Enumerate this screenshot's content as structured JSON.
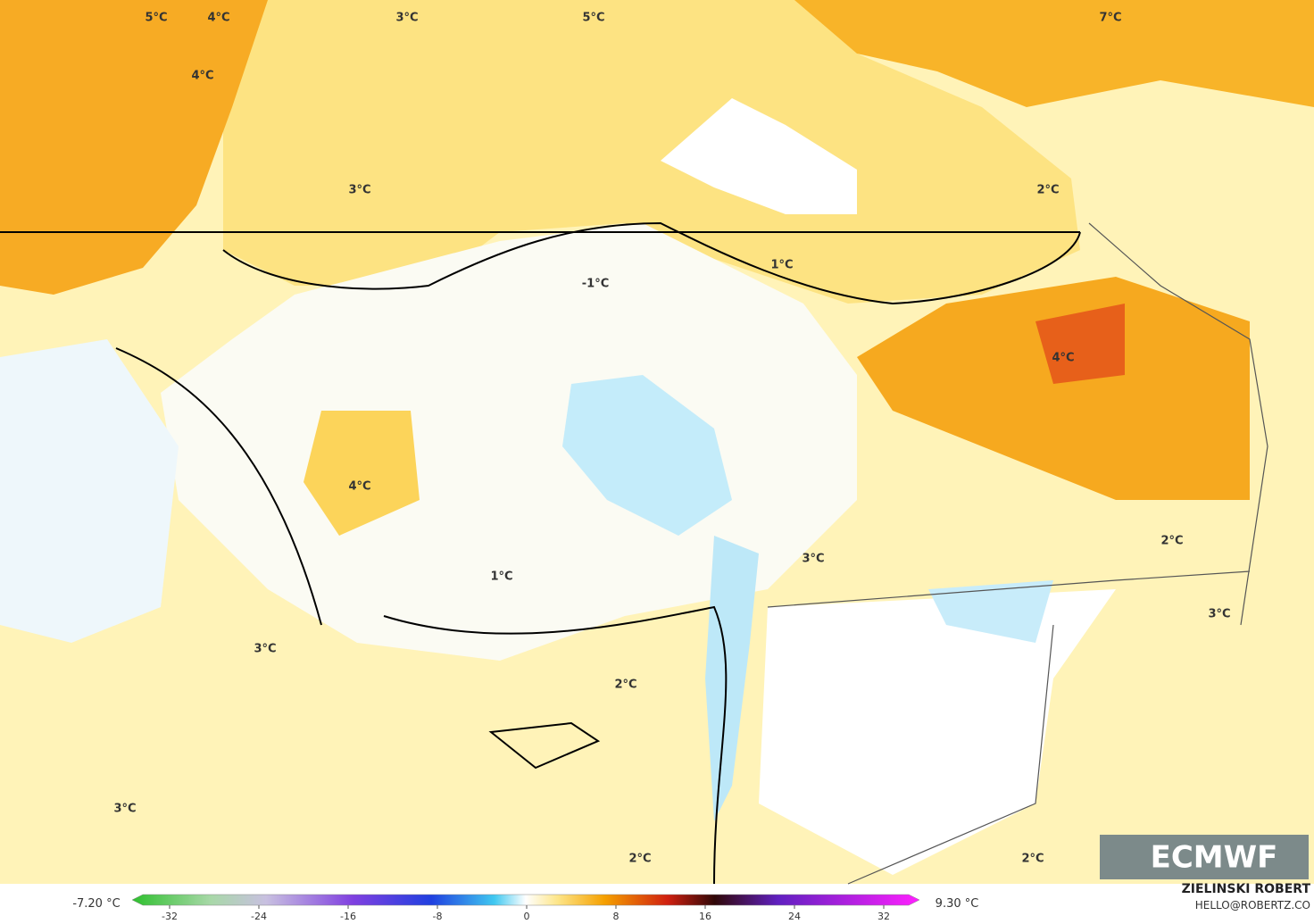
{
  "map": {
    "labels": [
      "5°C",
      "4°C",
      "3°C",
      "5°C",
      "7°C",
      "4°C",
      "3°C",
      "2°C",
      "1°C",
      "-1°C",
      "4°C",
      "4°C",
      "3°C",
      "2°C",
      "1°C",
      "3°C",
      "3°C",
      "2°C",
      "3°C",
      "2°C",
      "2°C"
    ],
    "logo": "ECMWF"
  },
  "colorbar": {
    "min_label": "-7.20 °C",
    "max_label": "9.30 °C",
    "xlim": [
      -36,
      36
    ],
    "ticks": [
      -32,
      -24,
      -16,
      -8,
      0,
      8,
      16,
      24,
      32
    ]
  },
  "footer": {
    "author": "ZIELINSKI ROBERT",
    "email": "HELLO@ROBERTZ.CO"
  }
}
